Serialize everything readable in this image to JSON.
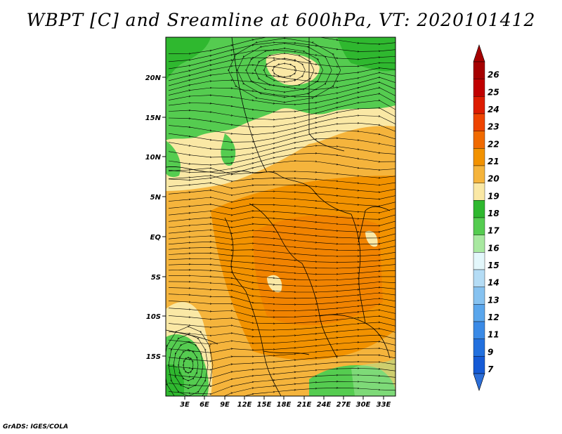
{
  "title": "WBPT [C] and Sreamline at 600hPa, VT: 2020101412",
  "footer": "GrADS: IGES/COLA",
  "map": {
    "lat_labels": [
      "20N",
      "15N",
      "10N",
      "5N",
      "EQ",
      "5S",
      "10S",
      "15S"
    ],
    "lon_labels": [
      "3E",
      "6E",
      "9E",
      "12E",
      "15E",
      "18E",
      "21E",
      "24E",
      "27E",
      "30E",
      "33E"
    ]
  },
  "colorbar": {
    "levels": [
      {
        "label": "26",
        "color": "#a50000"
      },
      {
        "label": "25",
        "color": "#c00000"
      },
      {
        "label": "24",
        "color": "#dd1c00"
      },
      {
        "label": "23",
        "color": "#ee4400"
      },
      {
        "label": "22",
        "color": "#f06a00"
      },
      {
        "label": "21",
        "color": "#f29200"
      },
      {
        "label": "20",
        "color": "#f5b43c"
      },
      {
        "label": "19",
        "color": "#fae8a5"
      },
      {
        "label": "18",
        "color": "#2fb82f"
      },
      {
        "label": "17",
        "color": "#55cc50"
      },
      {
        "label": "16",
        "color": "#a8e8a0"
      },
      {
        "label": "15",
        "color": "#e3f7fb"
      },
      {
        "label": "14",
        "color": "#b4dcf5"
      },
      {
        "label": "13",
        "color": "#86c2f0"
      },
      {
        "label": "12",
        "color": "#5aa6ec"
      },
      {
        "label": "11",
        "color": "#3a8ae6"
      },
      {
        "label": "9",
        "color": "#2270de"
      },
      {
        "label": "7",
        "color": "#155ad5"
      }
    ],
    "bottom_color": "#2c6ed8",
    "top_color": "#a50000"
  }
}
